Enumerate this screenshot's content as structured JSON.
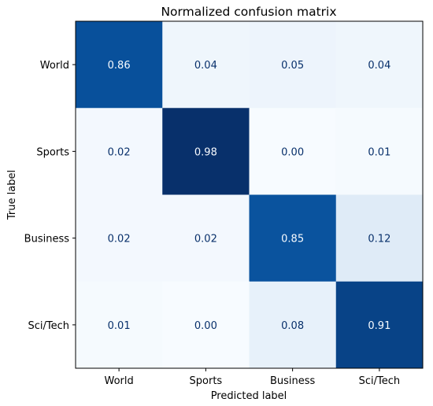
{
  "chart_data": {
    "type": "heatmap",
    "title": "Normalized confusion matrix",
    "xlabel": "Predicted label",
    "ylabel": "True label",
    "x_categories": [
      "World",
      "Sports",
      "Business",
      "Sci/Tech"
    ],
    "y_categories": [
      "World",
      "Sports",
      "Business",
      "Sci/Tech"
    ],
    "values": [
      [
        0.86,
        0.04,
        0.05,
        0.04
      ],
      [
        0.02,
        0.98,
        0.0,
        0.01
      ],
      [
        0.02,
        0.02,
        0.85,
        0.12
      ],
      [
        0.01,
        0.0,
        0.08,
        0.91
      ]
    ],
    "value_labels": [
      [
        "0.86",
        "0.04",
        "0.05",
        "0.04"
      ],
      [
        "0.02",
        "0.98",
        "0.00",
        "0.01"
      ],
      [
        "0.02",
        "0.02",
        "0.85",
        "0.12"
      ],
      [
        "0.01",
        "0.00",
        "0.08",
        "0.91"
      ]
    ],
    "colormap": "Blues",
    "grid": false,
    "colors": {
      "low": "#f7fbff",
      "high": "#08306b",
      "text_dark": "#08306b",
      "text_light": "#f7fbff"
    }
  }
}
